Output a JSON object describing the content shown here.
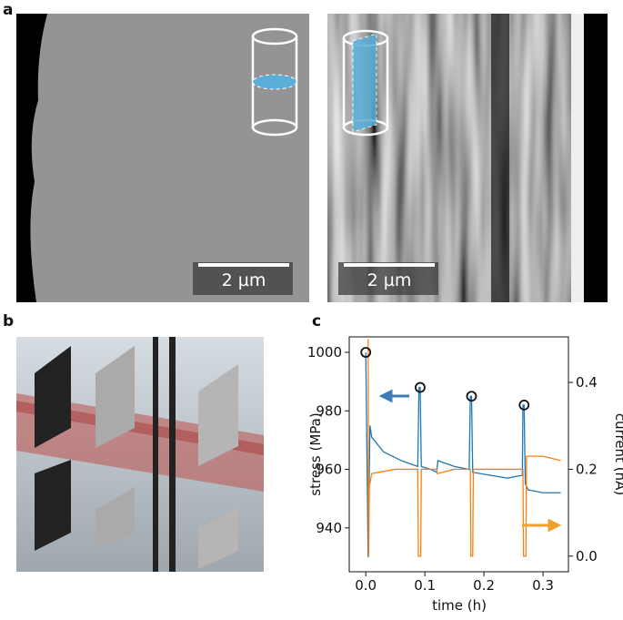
{
  "panels": {
    "a": {
      "label": "a",
      "scale_bars": [
        "2 µm",
        "2 µm"
      ]
    },
    "b": {
      "label": "b"
    },
    "c": {
      "label": "c"
    }
  },
  "chart_data": {
    "type": "line",
    "xlabel": "time (h)",
    "ylabel": "stress (MPa)",
    "y2label": "current (nA)",
    "xlim": [
      -0.028,
      0.343
    ],
    "xticks": [
      {
        "value": 0,
        "label": "0.0"
      },
      0.1,
      0.2,
      0.3
    ],
    "ylim": [
      925,
      1005.3
    ],
    "yticks": [
      940,
      960,
      980,
      1000
    ],
    "y2lim": [
      -0.036,
      0.505
    ],
    "y2ticks": [
      {
        "value": 0,
        "label": "0.0"
      },
      0.2,
      0.4
    ],
    "series": [
      {
        "color": "#1f77b4",
        "x": [
          0,
          0.004,
          0.007,
          0.01,
          0.03,
          0.06,
          0.088,
          0.09,
          0.092,
          0.094,
          0.11,
          0.12,
          0.122,
          0.15,
          0.175,
          0.177,
          0.179,
          0.181,
          0.21,
          0.24,
          0.265,
          0.266,
          0.268,
          0.27,
          0.275,
          0.3,
          0.33
        ],
        "values": [
          1000,
          930,
          975,
          971,
          966,
          963,
          961,
          988,
          988,
          961,
          960,
          959,
          963,
          961,
          960,
          985,
          985,
          959,
          958,
          957,
          958,
          982,
          982,
          955,
          953,
          952,
          952
        ]
      },
      {
        "color": "#ff7f0e",
        "axis": "y2",
        "x": [
          0.004,
          0.005,
          0.006,
          0.01,
          0.05,
          0.088,
          0.089,
          0.093,
          0.094,
          0.12,
          0.121,
          0.15,
          0.177,
          0.178,
          0.181,
          0.182,
          0.24,
          0.266,
          0.267,
          0.271,
          0.272,
          0.3,
          0.33
        ],
        "values": [
          0.5,
          0.0,
          0.16,
          0.19,
          0.2,
          0.2,
          0.0,
          0.0,
          0.2,
          0.2,
          0.19,
          0.2,
          0.2,
          0.0,
          0.0,
          0.2,
          0.2,
          0.2,
          0.0,
          0.0,
          0.23,
          0.23,
          0.22
        ]
      }
    ],
    "markers": {
      "x": [
        0,
        0.092,
        0.179,
        0.268
      ],
      "values": [
        1000,
        988,
        985,
        982
      ]
    }
  }
}
